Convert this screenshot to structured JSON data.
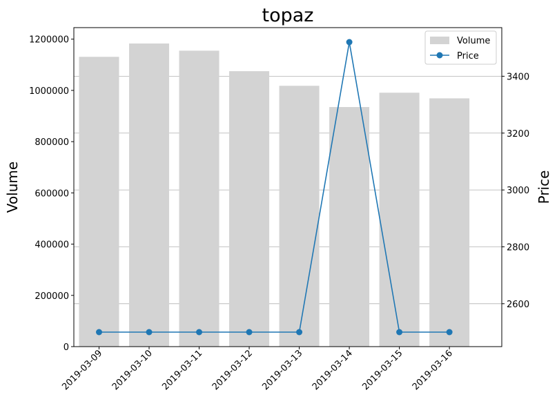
{
  "chart_data": {
    "type": "bar+line",
    "title": "topaz",
    "categories": [
      "2019-03-09",
      "2019-03-10",
      "2019-03-11",
      "2019-03-12",
      "2019-03-13",
      "2019-03-14",
      "2019-03-15",
      "2019-03-16"
    ],
    "series": [
      {
        "name": "Volume",
        "type": "bar",
        "axis": "left",
        "color": "#d3d3d3",
        "values": [
          1131000,
          1183000,
          1155000,
          1075000,
          1018000,
          935000,
          991000,
          969000
        ]
      },
      {
        "name": "Price",
        "type": "line",
        "axis": "right",
        "color": "#1f77b4",
        "marker": "circle",
        "values": [
          2500,
          2500,
          2500,
          2500,
          2500,
          3520,
          2500,
          2500
        ]
      }
    ],
    "ylabel_left": "Volume",
    "ylabel_right": "Price",
    "xlabel": "",
    "ylim_left": [
      0,
      1245000
    ],
    "yticks_left": [
      0,
      200000,
      400000,
      600000,
      800000,
      1000000,
      1200000
    ],
    "ylim_right": [
      2449,
      3571
    ],
    "yticks_right": [
      2600,
      2800,
      3000,
      3200,
      3400
    ],
    "grid": "right-axis horizontal",
    "legend_position": "top-right",
    "xtick_rotation": 45
  }
}
